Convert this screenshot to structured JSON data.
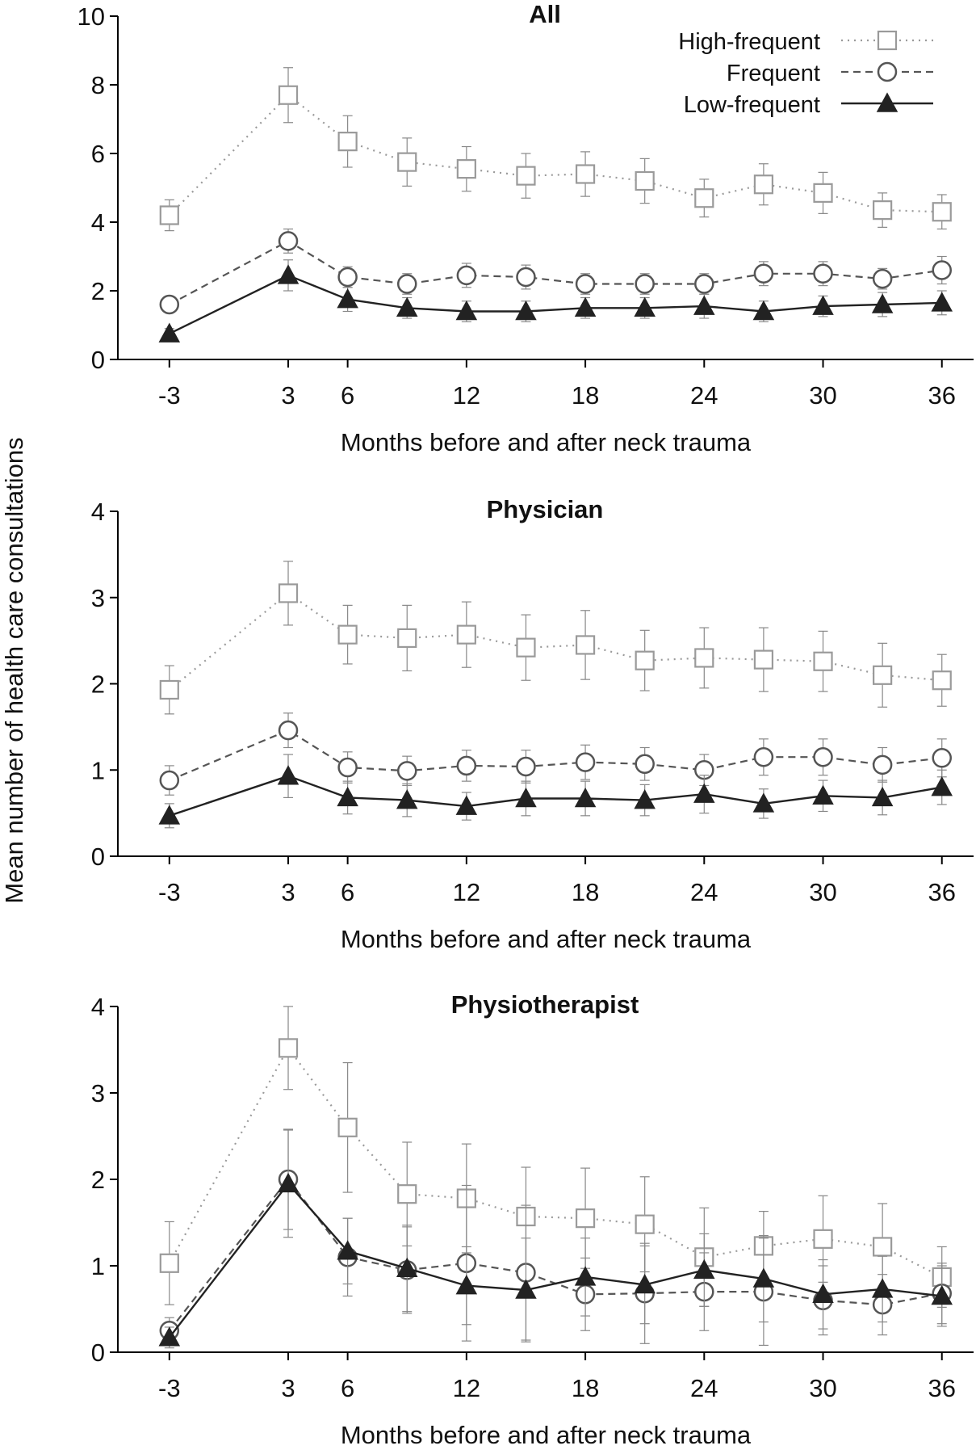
{
  "ylabel": "Mean number of health care consultations",
  "legend": [
    {
      "name": "High-frequent",
      "marker": "square",
      "style": "dotted"
    },
    {
      "name": "Frequent",
      "marker": "circle",
      "style": "dashed"
    },
    {
      "name": "Low-frequent",
      "marker": "triangle",
      "style": "solid"
    }
  ],
  "chart_data": [
    {
      "type": "line",
      "title": "All",
      "xlabel": "Months before and after neck trauma",
      "ylabel": "Mean number of health care consultations",
      "x": [
        -3,
        3,
        6,
        9,
        12,
        15,
        18,
        21,
        24,
        27,
        30,
        33,
        36
      ],
      "xticks": [
        -3,
        3,
        6,
        12,
        18,
        24,
        30,
        36
      ],
      "ylim": [
        0,
        10
      ],
      "yticks": [
        0,
        2,
        4,
        6,
        8,
        10
      ],
      "series": [
        {
          "name": "High-frequent",
          "values": [
            4.2,
            7.7,
            6.35,
            5.75,
            5.55,
            5.35,
            5.4,
            5.2,
            4.7,
            5.1,
            4.85,
            4.35,
            4.3
          ],
          "err": [
            0.45,
            0.8,
            0.75,
            0.7,
            0.65,
            0.65,
            0.65,
            0.65,
            0.55,
            0.6,
            0.6,
            0.5,
            0.5
          ]
        },
        {
          "name": "Frequent",
          "values": [
            1.6,
            3.45,
            2.4,
            2.2,
            2.45,
            2.4,
            2.2,
            2.2,
            2.2,
            2.5,
            2.5,
            2.35,
            2.6
          ],
          "err": [
            0.2,
            0.35,
            0.3,
            0.3,
            0.35,
            0.35,
            0.3,
            0.3,
            0.3,
            0.35,
            0.35,
            0.3,
            0.4
          ]
        },
        {
          "name": "Low-frequent",
          "values": [
            0.75,
            2.45,
            1.75,
            1.5,
            1.4,
            1.4,
            1.5,
            1.5,
            1.55,
            1.4,
            1.55,
            1.6,
            1.65
          ],
          "err": [
            0.15,
            0.45,
            0.35,
            0.3,
            0.3,
            0.3,
            0.3,
            0.3,
            0.35,
            0.3,
            0.3,
            0.35,
            0.35
          ]
        }
      ]
    },
    {
      "type": "line",
      "title": "Physician",
      "xlabel": "Months before and after neck trauma",
      "ylabel": "Mean number of health care consultations",
      "x": [
        -3,
        3,
        6,
        9,
        12,
        15,
        18,
        21,
        24,
        27,
        30,
        33,
        36
      ],
      "xticks": [
        -3,
        3,
        6,
        12,
        18,
        24,
        30,
        36
      ],
      "ylim": [
        0,
        4
      ],
      "yticks": [
        0,
        1,
        2,
        3,
        4
      ],
      "series": [
        {
          "name": "High-frequent",
          "values": [
            1.93,
            3.05,
            2.57,
            2.53,
            2.57,
            2.42,
            2.45,
            2.27,
            2.3,
            2.28,
            2.26,
            2.1,
            2.04
          ],
          "err": [
            0.28,
            0.37,
            0.34,
            0.38,
            0.38,
            0.38,
            0.4,
            0.35,
            0.35,
            0.37,
            0.35,
            0.37,
            0.3
          ]
        },
        {
          "name": "Frequent",
          "values": [
            0.88,
            1.46,
            1.03,
            0.99,
            1.05,
            1.04,
            1.09,
            1.07,
            1.0,
            1.15,
            1.15,
            1.06,
            1.14
          ],
          "err": [
            0.17,
            0.2,
            0.18,
            0.17,
            0.18,
            0.19,
            0.2,
            0.19,
            0.18,
            0.21,
            0.21,
            0.2,
            0.22
          ]
        },
        {
          "name": "Low-frequent",
          "values": [
            0.47,
            0.93,
            0.68,
            0.65,
            0.58,
            0.67,
            0.67,
            0.65,
            0.72,
            0.61,
            0.7,
            0.68,
            0.8
          ],
          "err": [
            0.14,
            0.25,
            0.19,
            0.19,
            0.16,
            0.2,
            0.2,
            0.18,
            0.22,
            0.17,
            0.18,
            0.2,
            0.2
          ]
        }
      ]
    },
    {
      "type": "line",
      "title": "Physiotherapist",
      "xlabel": "Months before and after neck trauma",
      "ylabel": "Mean number of health care consultations",
      "x": [
        -3,
        3,
        6,
        9,
        12,
        15,
        18,
        21,
        24,
        27,
        30,
        33,
        36
      ],
      "xticks": [
        -3,
        3,
        6,
        12,
        18,
        24,
        30,
        36
      ],
      "ylim": [
        0,
        4
      ],
      "yticks": [
        0,
        1,
        2,
        3,
        4
      ],
      "series": [
        {
          "name": "High-frequent",
          "values": [
            1.03,
            3.52,
            2.6,
            1.83,
            1.78,
            1.57,
            1.55,
            1.48,
            1.1,
            1.23,
            1.31,
            1.22,
            0.87
          ],
          "err": [
            0.48,
            0.48,
            0.75,
            0.6,
            0.63,
            0.57,
            0.58,
            0.55,
            0.57,
            0.4,
            0.5,
            0.5,
            0.35
          ]
        },
        {
          "name": "Frequent",
          "values": [
            0.25,
            2.0,
            1.1,
            0.95,
            1.03,
            0.92,
            0.67,
            0.68,
            0.7,
            0.7,
            0.6,
            0.55,
            0.68
          ],
          "err": [
            0.15,
            0.58,
            0.45,
            0.5,
            0.9,
            0.78,
            0.42,
            0.58,
            0.45,
            0.62,
            0.4,
            0.35,
            0.35
          ]
        },
        {
          "name": "Low-frequent",
          "values": [
            0.17,
            1.95,
            1.17,
            0.97,
            0.77,
            0.72,
            0.87,
            0.78,
            0.95,
            0.85,
            0.67,
            0.73,
            0.65
          ],
          "err": [
            0.12,
            0.62,
            0.38,
            0.5,
            0.45,
            0.6,
            0.45,
            0.45,
            0.42,
            0.5,
            0.4,
            0.38,
            0.35
          ]
        }
      ]
    }
  ]
}
